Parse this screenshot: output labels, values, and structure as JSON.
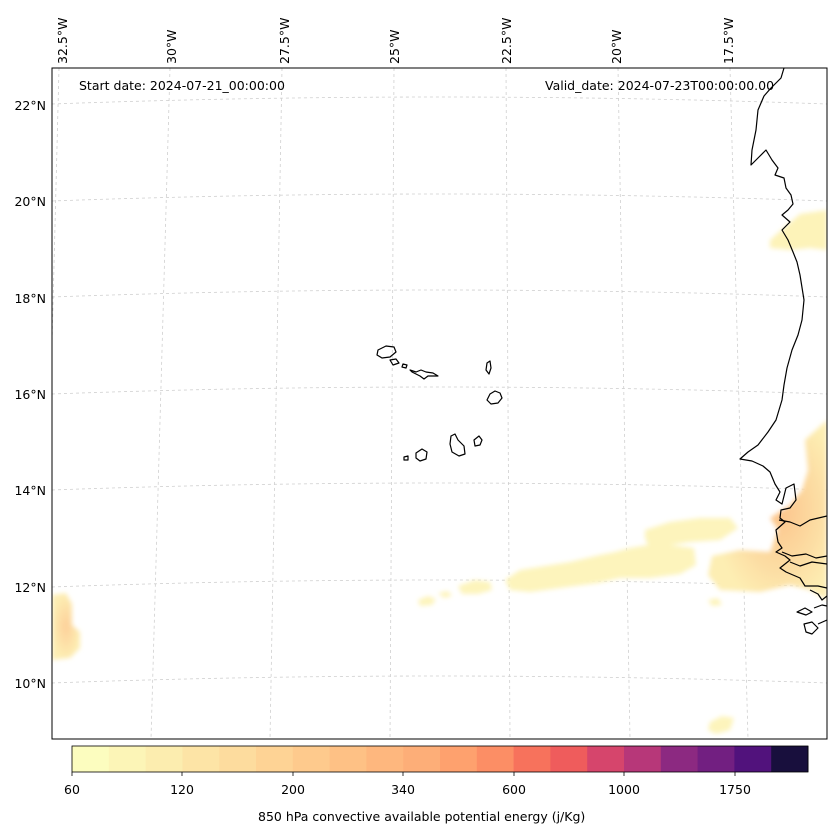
{
  "map": {
    "header": {
      "start_date": "Start date: 2024-07-21_00:00:00",
      "valid_date": "Valid_date: 2024-07-23T00:00:00.00"
    },
    "lon_labels": [
      "32.5°W",
      "30°W",
      "27.5°W",
      "25°W",
      "22.5°W",
      "20°W",
      "17.5°W"
    ],
    "lat_labels": [
      "22°N",
      "20°N",
      "18°N",
      "16°N",
      "14°N",
      "12°N",
      "10°N"
    ],
    "gridlines": "dashed-light-gray",
    "coastline_color": "#000000"
  },
  "colorbar": {
    "tick_labels": [
      "60",
      "120",
      "200",
      "340",
      "600",
      "1000",
      "1750"
    ],
    "title": "850 hPa convective available potential energy (j/Kg)",
    "colors": [
      "#fcfdbf",
      "#fcf5b7",
      "#fcedaf",
      "#fde4a6",
      "#fddc9e",
      "#fed395",
      "#feca8d",
      "#fec185",
      "#feb77e",
      "#fdae78",
      "#fea16e",
      "#fc8e65",
      "#f7725c",
      "#ef5c5c",
      "#d6456c",
      "#b73779",
      "#8c2981",
      "#721f81",
      "#51127c",
      "#180f3d"
    ]
  },
  "regions": [
    {
      "name": "cape-area-mauritania",
      "level": 0.12
    },
    {
      "name": "cape-area-senegal",
      "level": 0.25
    },
    {
      "name": "cape-band-12n",
      "level": 0.1
    },
    {
      "name": "cape-area-west-edge",
      "level": 0.3
    },
    {
      "name": "cape-area-south",
      "level": 0.08
    }
  ],
  "islands": [
    "santo-antao",
    "sao-vicente",
    "sao-nicolau",
    "sal",
    "boa-vista",
    "maio",
    "santiago",
    "fogo",
    "brava"
  ]
}
